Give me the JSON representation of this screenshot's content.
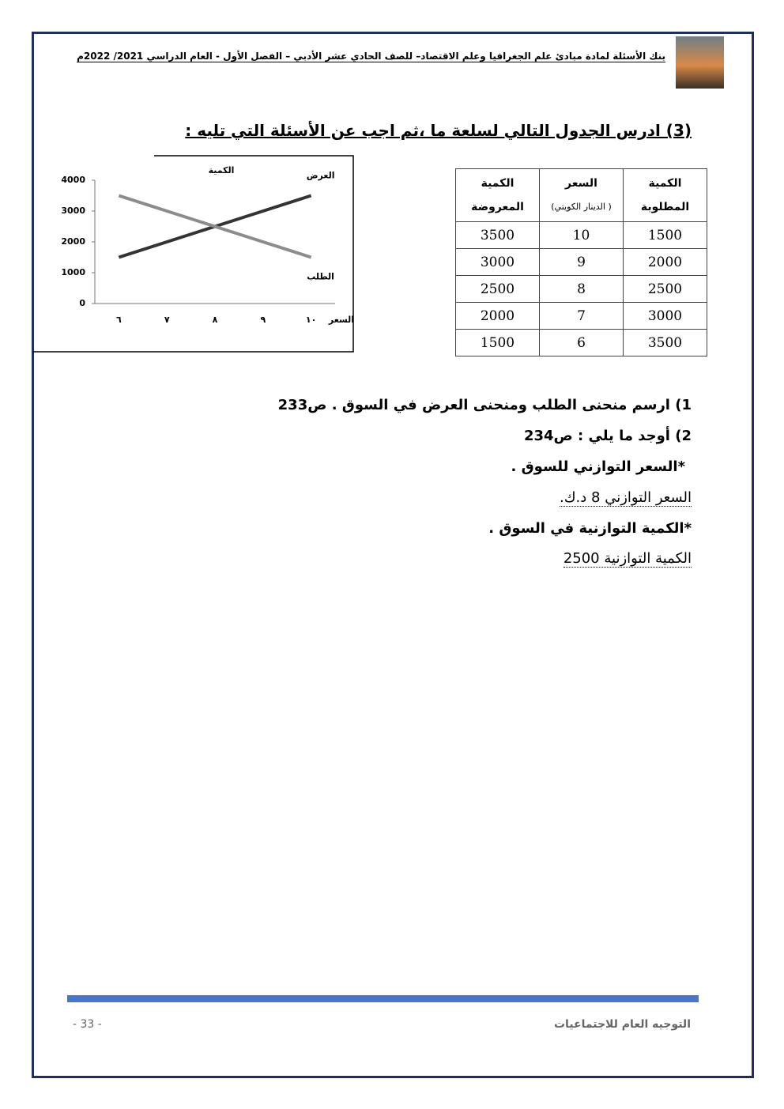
{
  "header": {
    "title": "بنك الأسئلة لمادة مبادئ علم الجغرافيا وعلم الاقتصاد– للصف الحادي عشر الأدبي – الفصل الأول - العام الدراسي 2021/ 2022م"
  },
  "question": {
    "title": "(3) ادرس الجدول التالي لسلعة ما ،ثم اجب عن الأسئلة التي تليه :"
  },
  "table": {
    "header": [
      [
        "الكمية",
        "المطلوبة"
      ],
      [
        "السعر",
        "( الدينار الكويتي)"
      ],
      [
        "الكمية",
        "المعروضة"
      ]
    ],
    "rows": [
      [
        1500,
        10,
        3500
      ],
      [
        2000,
        9,
        3000
      ],
      [
        2500,
        8,
        2500
      ],
      [
        3000,
        7,
        2000
      ],
      [
        3500,
        6,
        1500
      ]
    ]
  },
  "chart_data": {
    "type": "line",
    "y_label": "الكمية",
    "x_label": "السعر",
    "categories": [
      "٦",
      "٧",
      "٨",
      "٩",
      "١٠"
    ],
    "series": [
      {
        "name": "العرض",
        "color": "#333333",
        "values": [
          1500,
          2000,
          2500,
          3000,
          3500
        ]
      },
      {
        "name": "الطلب",
        "color": "#8c8c8c",
        "values": [
          3500,
          3000,
          2500,
          2000,
          1500
        ]
      }
    ],
    "ylim": [
      0,
      4000
    ],
    "yticks": [
      0,
      1000,
      2000,
      3000,
      4000
    ]
  },
  "items": {
    "q1": "1) ارسم منحنى الطلب ومنحنى العرض في السوق . ص233",
    "q2": "2) أوجد ما يلي : ص234",
    "q2a": "*السعر التوازني للسوق .",
    "a2a": "السعر التوازني 8 د.ك.",
    "q2b": "*الكمية التوازنية في السوق .",
    "a2b": "الكمية التوازنية 2500"
  },
  "footer": {
    "org": "التوجيه العام للاجتماعيات",
    "page": "- 33 -"
  }
}
